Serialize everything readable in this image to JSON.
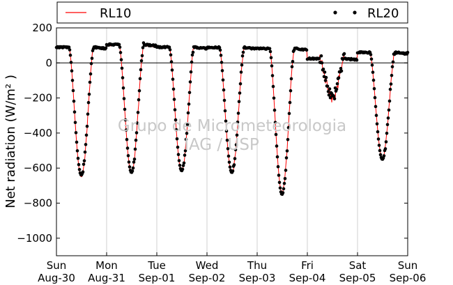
{
  "chart_data": {
    "type": "line",
    "ylabel": "Net radiation (W/m² )",
    "ylim": [
      -1100,
      200
    ],
    "yticks": [
      200,
      0,
      -200,
      -400,
      -600,
      -800,
      -1000
    ],
    "xlim": [
      "2009-08-30",
      "2009-09-06"
    ],
    "xtick_labels": [
      {
        "day": "Sun",
        "date": "Aug-30"
      },
      {
        "day": "Mon",
        "date": "Aug-31"
      },
      {
        "day": "Tue",
        "date": "Sep-01"
      },
      {
        "day": "Wed",
        "date": "Sep-02"
      },
      {
        "day": "Thu",
        "date": "Sep-03"
      },
      {
        "day": "Fri",
        "date": "Sep-04"
      },
      {
        "day": "Sat",
        "date": "Sep-05"
      },
      {
        "day": "Sun",
        "date": "Sep-06"
      }
    ],
    "grid": "vertical lines at day boundaries",
    "zero_line": true,
    "legend_placement": "top, outside plot",
    "watermark": [
      "Grupo de Micrometeorologia",
      "IAG / USP"
    ],
    "series": [
      {
        "name": "RL10",
        "style": "red line",
        "color": "#ff0000",
        "days": [
          {
            "date": "2009-08-30",
            "night": 90,
            "min": -650
          },
          {
            "date": "2009-08-31",
            "night": 100,
            "min": -630
          },
          {
            "date": "2009-09-01",
            "night": 90,
            "min": -620
          },
          {
            "date": "2009-09-02",
            "night": 85,
            "min": -630
          },
          {
            "date": "2009-09-03",
            "night": 80,
            "min": -740
          },
          {
            "date": "2009-09-04",
            "night": 20,
            "min": -200
          },
          {
            "date": "2009-09-05",
            "night": 55,
            "min": -540
          }
        ]
      },
      {
        "name": "RL20",
        "style": "black dots",
        "color": "#000000",
        "days": [
          {
            "date": "2009-08-30",
            "night": 90,
            "min": -640
          },
          {
            "date": "2009-08-31",
            "night": 105,
            "min": -625
          },
          {
            "date": "2009-09-01",
            "night": 90,
            "min": -615
          },
          {
            "date": "2009-09-02",
            "night": 88,
            "min": -625
          },
          {
            "date": "2009-09-03",
            "night": 82,
            "min": -750
          },
          {
            "date": "2009-09-04",
            "night": 25,
            "min": -190
          },
          {
            "date": "2009-09-05",
            "night": 60,
            "min": -550
          }
        ]
      }
    ]
  }
}
